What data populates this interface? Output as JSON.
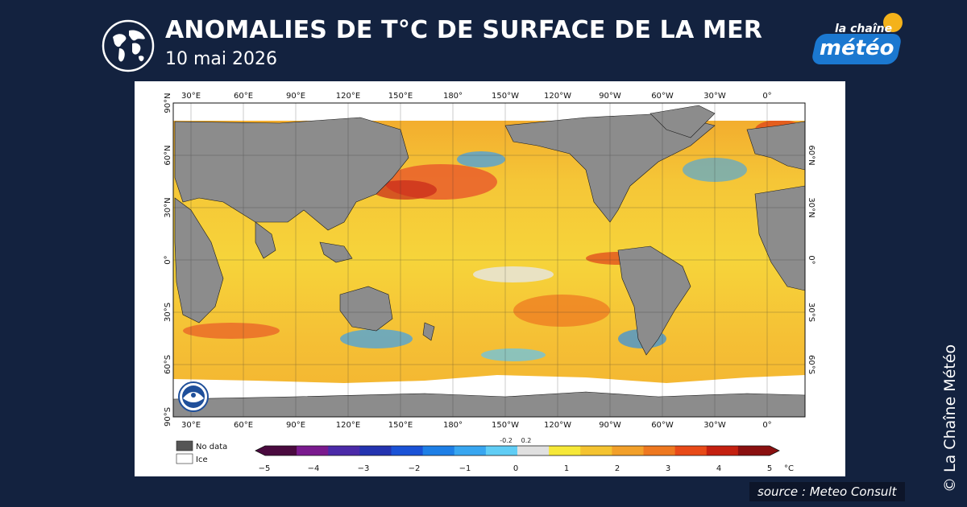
{
  "header": {
    "title": "ANOMALIES DE T°C DE SURFACE DE LA MER",
    "date": "10 mai 2026"
  },
  "logo": {
    "line1": "la chaîne",
    "line2": "météo",
    "sun_color": "#f4b21a",
    "badge_color": "#1b78d0"
  },
  "map": {
    "projection": "equirectangular, centered on 180°",
    "top_lon_labels": [
      "30°E",
      "60°E",
      "90°E",
      "120°E",
      "150°E",
      "180°",
      "150°W",
      "120°W",
      "90°W",
      "60°W",
      "30°W",
      "0°"
    ],
    "bottom_lon_labels": [
      "30°E",
      "60°E",
      "90°E",
      "120°E",
      "150°E",
      "180°",
      "150°W",
      "120°W",
      "90°W",
      "60°W",
      "30°W",
      "0°"
    ],
    "left_lat_labels": [
      "90°N",
      "60°N",
      "30°N",
      "0°",
      "30°S",
      "60°S",
      "90°S"
    ],
    "right_lat_labels": [
      "60°N",
      "30°N",
      "0°",
      "30°S",
      "60°S"
    ],
    "land_color": "#8c8c8c",
    "ice_color": "#ffffff",
    "agency_logo": "noaa-logo"
  },
  "legend": {
    "no_data_label": "No data",
    "ice_label": "Ice",
    "no_data_color": "#555555",
    "ice_color": "#ffffff",
    "unit": "°C",
    "ticks": [
      "−5",
      "−4",
      "−3",
      "−2",
      "−1",
      "0",
      "1",
      "2",
      "3",
      "4",
      "5"
    ],
    "center_ticks": [
      "-0.2",
      "0.2"
    ],
    "colors": [
      "#4a0a3f",
      "#7a1a8e",
      "#4b2aa8",
      "#2433b0",
      "#1a52d6",
      "#1e7fe6",
      "#38a6f0",
      "#60cdf5",
      "#e0e0e0",
      "#f6e838",
      "#f4c330",
      "#f2a02a",
      "#ee7820",
      "#e84a18",
      "#c42010",
      "#8a1010"
    ]
  },
  "source": "source : Meteo Consult",
  "copyright": "© La Chaîne Météo"
}
